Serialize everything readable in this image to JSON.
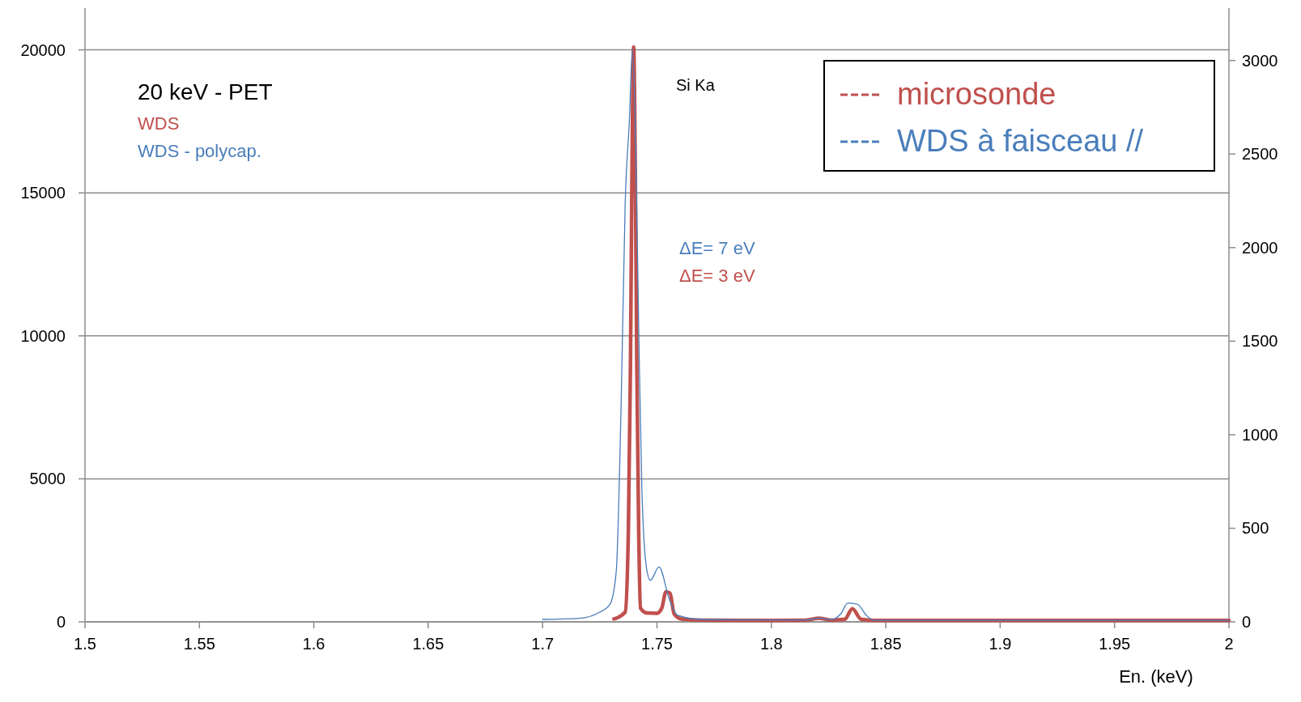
{
  "chart_data": {
    "type": "line",
    "xlabel": "En. (keV)",
    "annotations": [
      "20 keV - PET",
      "WDS",
      "WDS - polycap.",
      "Si Ka",
      "ΔE= 7 eV",
      "ΔE=  3 eV"
    ],
    "series": [
      {
        "name": "microsonde",
        "color": "#c0504d",
        "x": [
          1.7312,
          1.7361,
          1.7375,
          1.7384,
          1.7391,
          1.7398,
          1.7405,
          1.7412,
          1.742,
          1.7428,
          1.7455,
          1.75,
          1.7521,
          1.7539,
          1.7557,
          1.7575,
          1.7607,
          1.77,
          1.8,
          1.815,
          1.8209,
          1.826,
          1.8321,
          1.8354,
          1.8392,
          1.845,
          1.9,
          1.95,
          2.0
        ],
        "values": [
          100,
          340,
          3200,
          8900,
          16030,
          20100,
          16030,
          8900,
          3200,
          480,
          310,
          300,
          480,
          1050,
          1000,
          280,
          100,
          60,
          50,
          60,
          130,
          60,
          90,
          460,
          90,
          50,
          50,
          50,
          50
        ]
      },
      {
        "name": "WDS à faisceau //",
        "color": "#4a7ebb",
        "axis": "y2",
        "x": [
          1.7,
          1.7161,
          1.725,
          1.7295,
          1.7322,
          1.7343,
          1.7361,
          1.7379,
          1.7393,
          1.7405,
          1.742,
          1.7434,
          1.7455,
          1.7471,
          1.7509,
          1.7554,
          1.759,
          1.77,
          1.8,
          1.815,
          1.8211,
          1.826,
          1.8303,
          1.8334,
          1.8375,
          1.8416,
          1.845,
          1.9,
          1.95,
          2.0
        ],
        "values": [
          13,
          19,
          52,
          95,
          270,
          1143,
          2234,
          2671,
          3063,
          2671,
          1580,
          706,
          281,
          222,
          294,
          121,
          35,
          12,
          10,
          10,
          20,
          12,
          42,
          100,
          95,
          34,
          8,
          8,
          8,
          8
        ]
      }
    ],
    "xlim": [
      1.5,
      2.0
    ],
    "xticks": [
      1.5,
      1.55,
      1.6,
      1.65,
      1.7,
      1.75,
      1.8,
      1.85,
      1.9,
      1.95,
      2
    ],
    "ylim": [
      0,
      21460
    ],
    "yticks": [
      0,
      5000,
      10000,
      15000,
      20000
    ],
    "y2lim": [
      0,
      3280
    ],
    "y2ticks": [
      0,
      500,
      1000,
      1500,
      2000,
      2500,
      3000
    ],
    "grid": "y",
    "legend": "top right",
    "marker": "none",
    "line_style": "solid"
  }
}
